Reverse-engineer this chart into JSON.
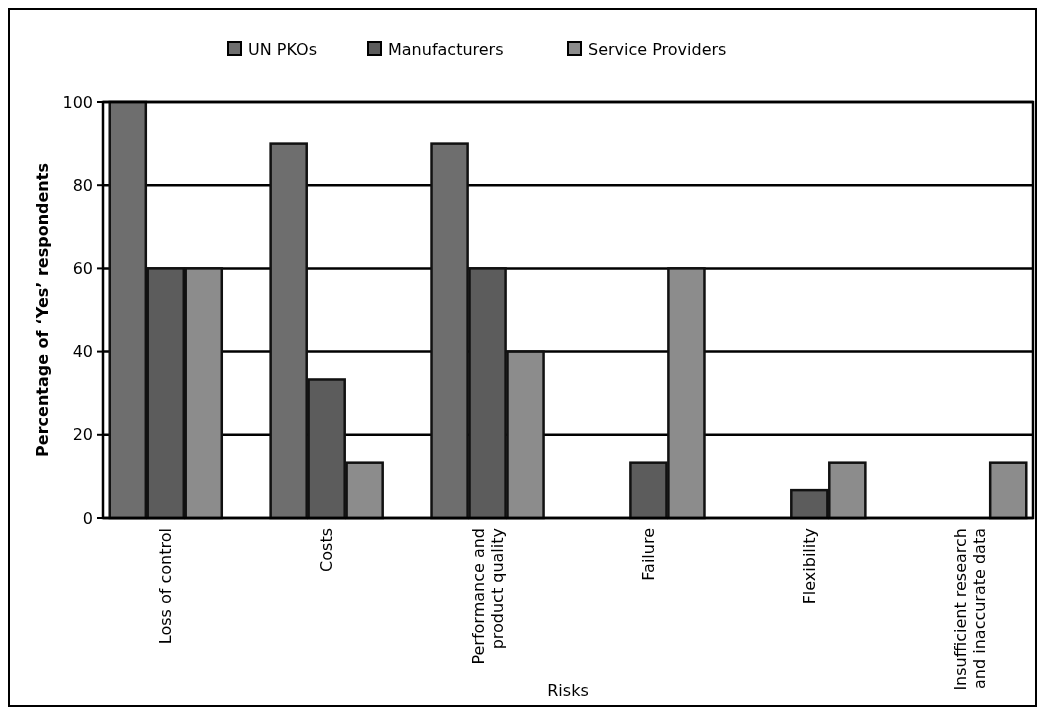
{
  "chart_data": {
    "type": "bar",
    "xlabel": "Risks",
    "ylabel": "Percentage of ‘Yes’ respondents",
    "categories": [
      "Loss of control",
      "Costs",
      "Performance and\nproduct quality",
      "Failure",
      "Flexibility",
      "Insufficient research\nand inaccurate data"
    ],
    "series": [
      {
        "name": "UN PKOs",
        "color": "#6e6e6e",
        "values": [
          100,
          90,
          90,
          0,
          0,
          0
        ]
      },
      {
        "name": "Manufacturers",
        "color": "#5c5c5c",
        "values": [
          60,
          33.3,
          60,
          13.3,
          6.7,
          0
        ]
      },
      {
        "name": "Service Providers",
        "color": "#8c8c8c",
        "values": [
          60,
          13.3,
          40,
          60,
          13.3,
          13.3
        ]
      }
    ],
    "ylim": [
      0,
      100
    ],
    "yticks": [
      0,
      20,
      40,
      60,
      80,
      100
    ],
    "grid": "y",
    "legend": "top"
  }
}
